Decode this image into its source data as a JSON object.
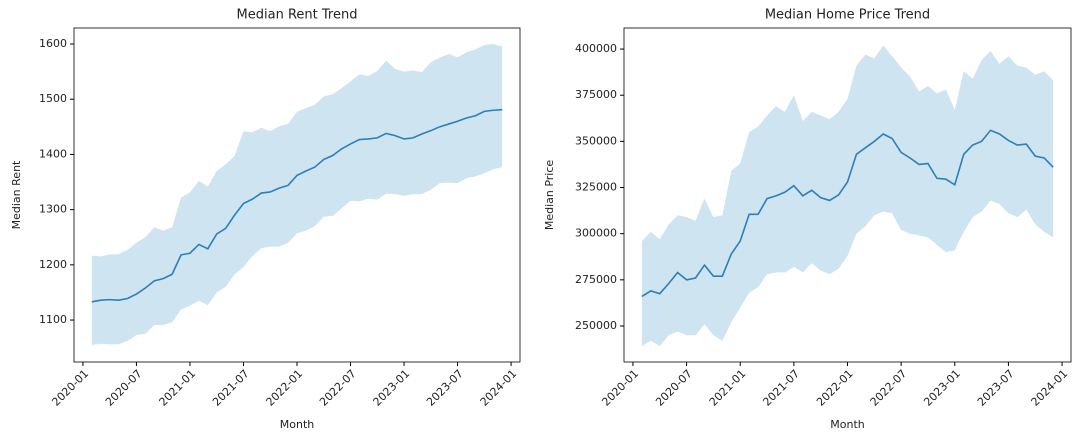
{
  "chart_data": [
    {
      "type": "line",
      "title": "Median Rent Trend",
      "xlabel": "Month",
      "ylabel": "Median Rent",
      "color": "#2c7fb8",
      "band_color": "#9ecae1",
      "x": [
        "2020-01",
        "2020-02",
        "2020-03",
        "2020-04",
        "2020-05",
        "2020-06",
        "2020-07",
        "2020-08",
        "2020-09",
        "2020-10",
        "2020-11",
        "2020-12",
        "2021-01",
        "2021-02",
        "2021-03",
        "2021-04",
        "2021-05",
        "2021-06",
        "2021-07",
        "2021-08",
        "2021-09",
        "2021-10",
        "2021-11",
        "2021-12",
        "2022-01",
        "2022-02",
        "2022-03",
        "2022-04",
        "2022-05",
        "2022-06",
        "2022-07",
        "2022-08",
        "2022-09",
        "2022-10",
        "2022-11",
        "2022-12",
        "2023-01",
        "2023-02",
        "2023-03",
        "2023-04",
        "2023-05",
        "2023-06",
        "2023-07",
        "2023-08",
        "2023-09",
        "2023-10",
        "2023-11"
      ],
      "values": [
        1133,
        1136,
        1137,
        1136,
        1139,
        1147,
        1158,
        1171,
        1175,
        1183,
        1218,
        1221,
        1237,
        1229,
        1256,
        1266,
        1290,
        1311,
        1319,
        1330,
        1332,
        1339,
        1344,
        1362,
        1370,
        1377,
        1391,
        1398,
        1410,
        1419,
        1427,
        1428,
        1430,
        1438,
        1434,
        1428,
        1430,
        1437,
        1443,
        1450,
        1455,
        1460,
        1466,
        1470,
        1478,
        1480,
        1481
      ],
      "lower": [
        1055,
        1057,
        1056,
        1056,
        1062,
        1073,
        1075,
        1091,
        1091,
        1096,
        1119,
        1126,
        1135,
        1127,
        1150,
        1160,
        1183,
        1196,
        1216,
        1230,
        1233,
        1233,
        1240,
        1257,
        1262,
        1270,
        1287,
        1289,
        1302,
        1316,
        1315,
        1320,
        1318,
        1329,
        1328,
        1325,
        1328,
        1328,
        1336,
        1348,
        1349,
        1348,
        1357,
        1360,
        1366,
        1373,
        1377
      ],
      "upper": [
        1217,
        1215,
        1219,
        1219,
        1227,
        1240,
        1250,
        1268,
        1262,
        1268,
        1322,
        1331,
        1352,
        1342,
        1370,
        1382,
        1397,
        1442,
        1440,
        1448,
        1442,
        1451,
        1455,
        1477,
        1484,
        1490,
        1505,
        1509,
        1520,
        1532,
        1545,
        1542,
        1551,
        1570,
        1555,
        1550,
        1552,
        1549,
        1567,
        1575,
        1582,
        1576,
        1585,
        1590,
        1598,
        1600,
        1595
      ],
      "xlim": [
        "2019-12",
        "2024-02"
      ],
      "xticks": [
        "2020-01",
        "2020-07",
        "2021-01",
        "2021-07",
        "2022-01",
        "2022-07",
        "2023-01",
        "2023-07",
        "2024-01"
      ],
      "ylim": [
        1024,
        1629
      ],
      "yticks": [
        1100,
        1200,
        1300,
        1400,
        1500,
        1600
      ]
    },
    {
      "type": "line",
      "title": "Median Home Price Trend",
      "xlabel": "Month",
      "ylabel": "Median Price",
      "color": "#2c7fb8",
      "band_color": "#9ecae1",
      "x": [
        "2020-01",
        "2020-02",
        "2020-03",
        "2020-04",
        "2020-05",
        "2020-06",
        "2020-07",
        "2020-08",
        "2020-09",
        "2020-10",
        "2020-11",
        "2020-12",
        "2021-01",
        "2021-02",
        "2021-03",
        "2021-04",
        "2021-05",
        "2021-06",
        "2021-07",
        "2021-08",
        "2021-09",
        "2021-10",
        "2021-11",
        "2021-12",
        "2022-01",
        "2022-02",
        "2022-03",
        "2022-04",
        "2022-05",
        "2022-06",
        "2022-07",
        "2022-08",
        "2022-09",
        "2022-10",
        "2022-11",
        "2022-12",
        "2023-01",
        "2023-02",
        "2023-03",
        "2023-04",
        "2023-05",
        "2023-06",
        "2023-07",
        "2023-08",
        "2023-09",
        "2023-10",
        "2023-11"
      ],
      "values": [
        266000,
        269000,
        267500,
        273000,
        279000,
        275000,
        276000,
        283000,
        277000,
        277000,
        289000,
        296000,
        310500,
        310500,
        319000,
        320500,
        322500,
        326000,
        320500,
        323500,
        319500,
        318000,
        321000,
        328000,
        343000,
        346500,
        350000,
        354000,
        351500,
        344000,
        341000,
        337500,
        338000,
        330000,
        329500,
        326500,
        343000,
        348000,
        350000,
        356000,
        354000,
        350500,
        348000,
        348500,
        342000,
        341000,
        336000
      ],
      "lower": [
        239000,
        242000,
        239000,
        245000,
        247000,
        245000,
        245000,
        251000,
        245000,
        242000,
        252000,
        260000,
        268000,
        271000,
        278000,
        279000,
        279000,
        282000,
        279000,
        284000,
        280000,
        278000,
        281000,
        288000,
        300000,
        304000,
        310000,
        312000,
        311000,
        302000,
        300000,
        299000,
        298000,
        294000,
        290000,
        291000,
        301000,
        309000,
        312000,
        318000,
        316000,
        311000,
        309000,
        313000,
        305000,
        301000,
        298000
      ],
      "upper": [
        296000,
        301000,
        297000,
        305000,
        310000,
        309000,
        307000,
        319000,
        309000,
        310000,
        334000,
        338000,
        355000,
        358000,
        364000,
        369000,
        366000,
        375000,
        361000,
        366000,
        364000,
        362000,
        366000,
        373000,
        391000,
        397000,
        395000,
        402000,
        396000,
        390000,
        385000,
        377000,
        380000,
        376000,
        378000,
        367000,
        388000,
        384000,
        394000,
        399000,
        392000,
        396000,
        391000,
        390000,
        386000,
        388000,
        383000
      ],
      "xlim": [
        "2019-12",
        "2024-02"
      ],
      "xticks": [
        "2020-01",
        "2020-07",
        "2021-01",
        "2021-07",
        "2022-01",
        "2022-07",
        "2023-01",
        "2023-07",
        "2024-01"
      ],
      "ylim": [
        230500,
        411400
      ],
      "yticks": [
        250000,
        275000,
        300000,
        325000,
        350000,
        375000,
        400000
      ]
    }
  ]
}
